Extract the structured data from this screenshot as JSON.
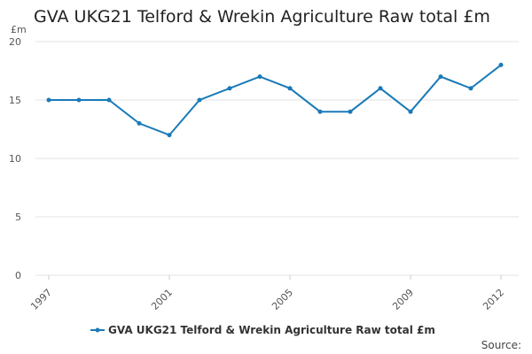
{
  "chart_data": {
    "type": "line",
    "title": "GVA UKG21 Telford & Wrekin Agriculture Raw total £m",
    "y_label": "£m",
    "source_label": "Source:",
    "x": [
      1997,
      1998,
      1999,
      2000,
      2001,
      2002,
      2003,
      2004,
      2005,
      2006,
      2007,
      2008,
      2009,
      2010,
      2011,
      2012
    ],
    "series": [
      {
        "name": "GVA UKG21 Telford & Wrekin Agriculture Raw total £m",
        "color": "#1a7ab8",
        "values": [
          15,
          15,
          15,
          13,
          12,
          15,
          16,
          17,
          16,
          14,
          14,
          16,
          14,
          17,
          16,
          18
        ]
      }
    ],
    "xlim": [
      1997,
      2012
    ],
    "xticks": [
      1997,
      2001,
      2005,
      2009,
      2012
    ],
    "ylim": [
      0,
      20
    ],
    "yticks": [
      0,
      5,
      10,
      15,
      20
    ],
    "grid": true,
    "legend": "bottom"
  }
}
